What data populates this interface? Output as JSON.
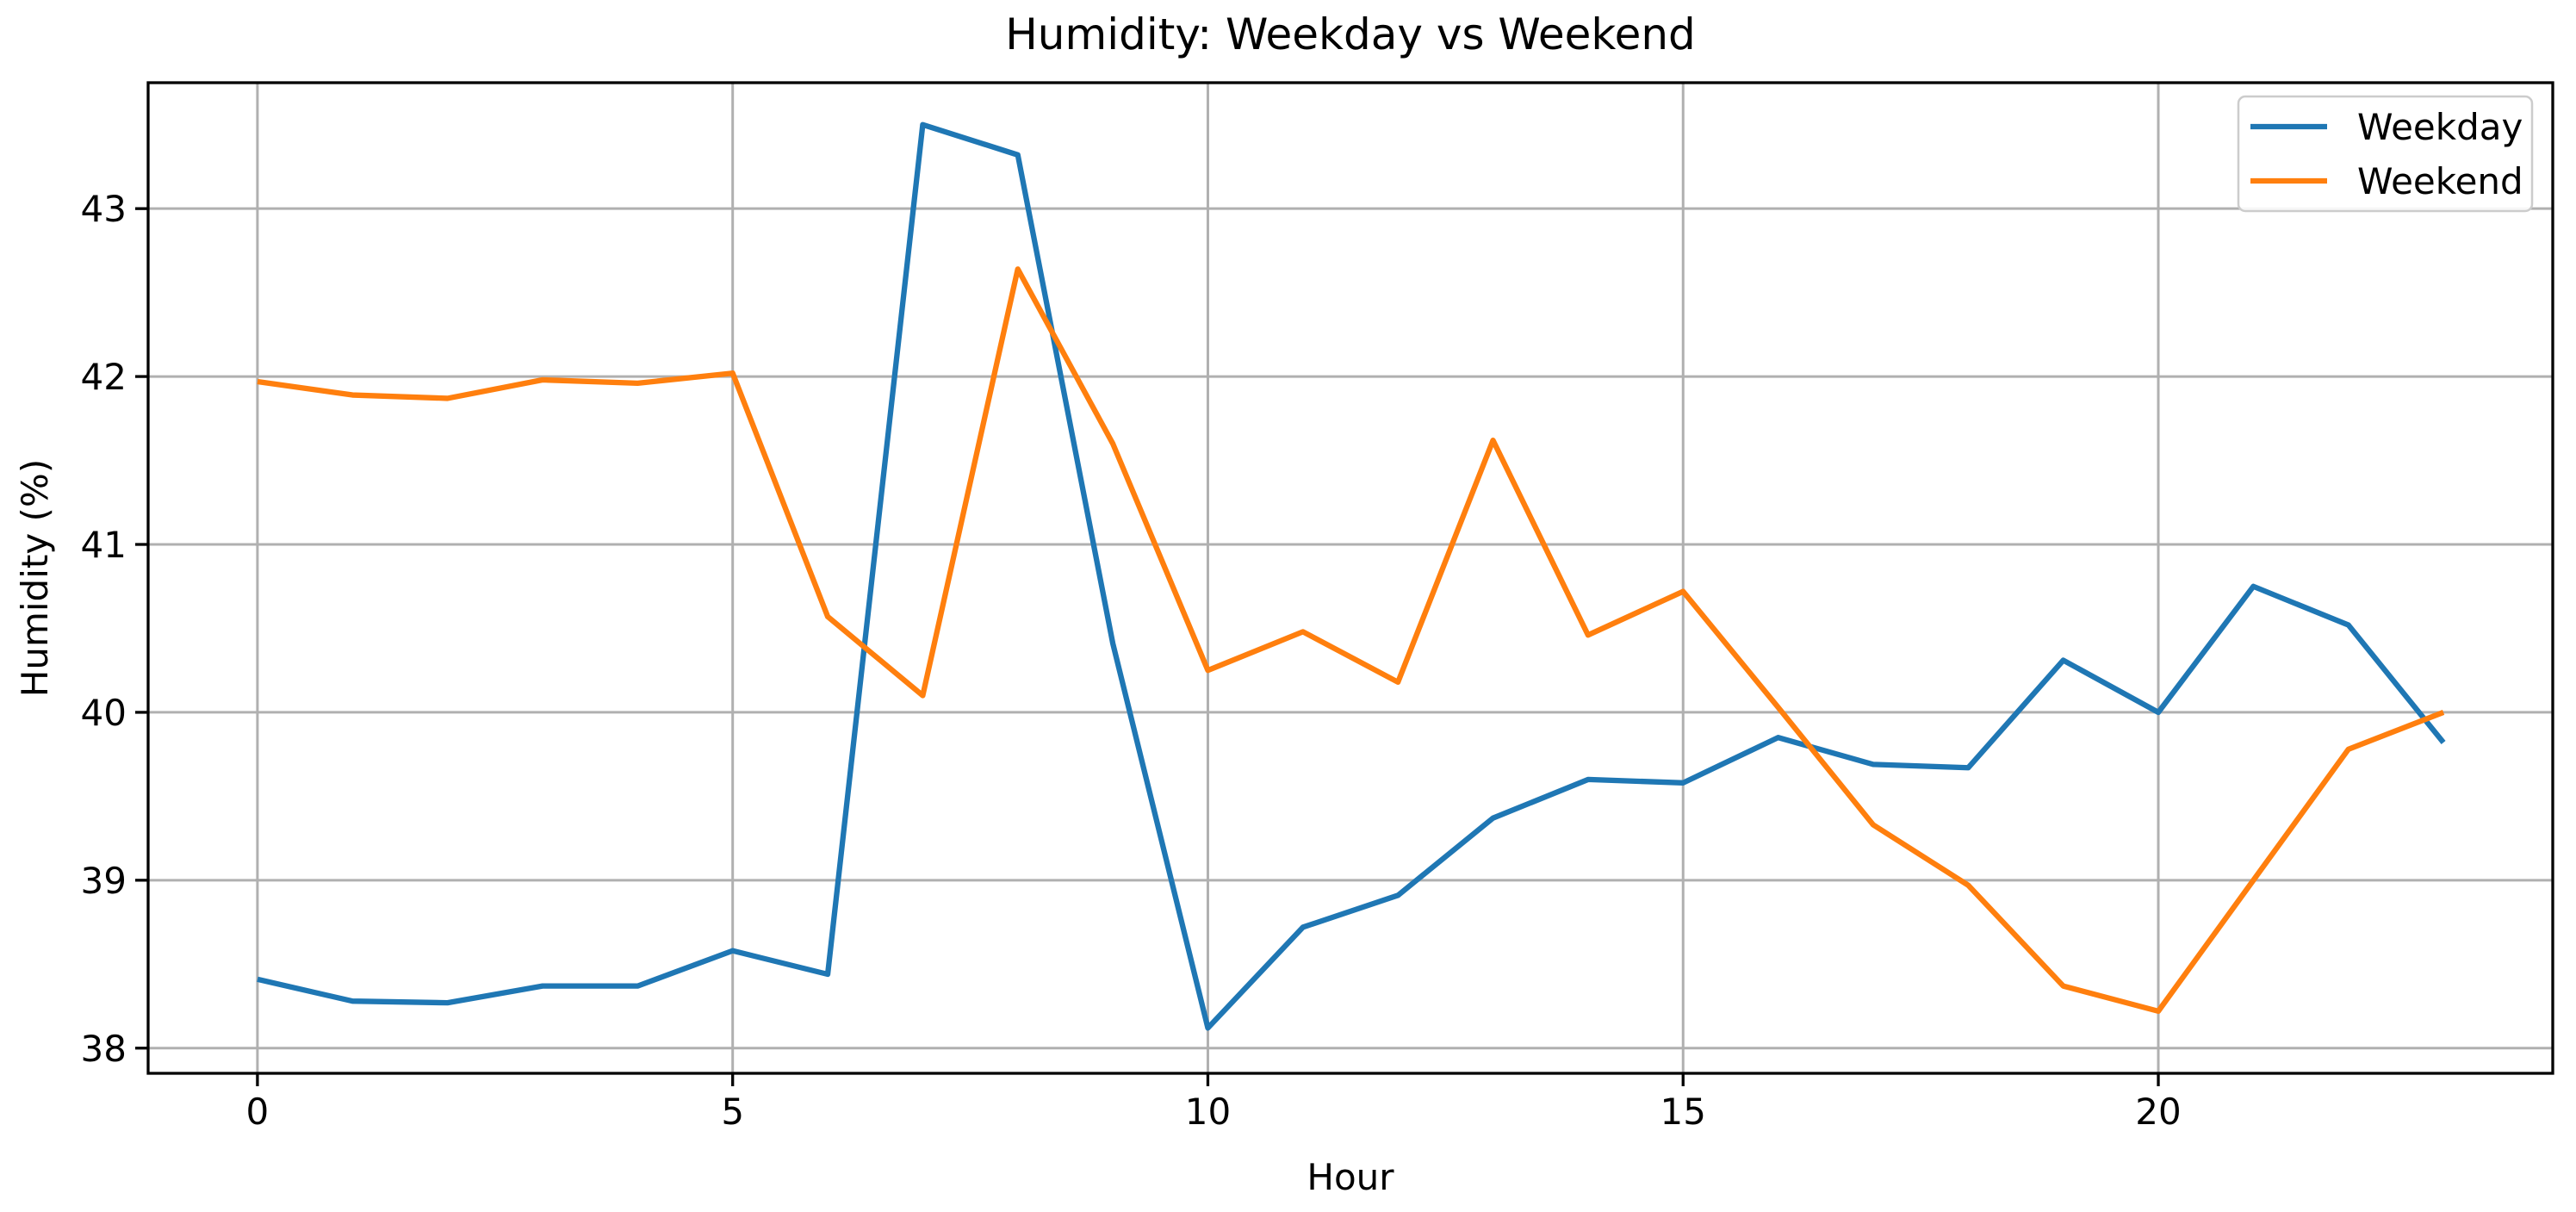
{
  "chart_data": {
    "type": "line",
    "title": "Humidity: Weekday vs Weekend",
    "xlabel": "Hour",
    "ylabel": "Humidity (%)",
    "x": [
      0,
      1,
      2,
      3,
      4,
      5,
      6,
      7,
      8,
      9,
      10,
      11,
      12,
      13,
      14,
      15,
      16,
      17,
      18,
      19,
      20,
      21,
      22,
      23
    ],
    "series": [
      {
        "name": "Weekday",
        "color": "#1f77b4",
        "values": [
          38.41,
          38.28,
          38.27,
          38.37,
          38.37,
          38.58,
          38.44,
          43.5,
          43.32,
          40.41,
          38.12,
          38.72,
          38.91,
          39.37,
          39.6,
          39.58,
          39.85,
          39.69,
          39.67,
          40.31,
          40.0,
          40.75,
          40.52,
          39.82
        ]
      },
      {
        "name": "Weekend",
        "color": "#ff7f0e",
        "values": [
          41.97,
          41.89,
          41.87,
          41.98,
          41.96,
          42.02,
          40.57,
          40.1,
          42.64,
          41.6,
          40.25,
          40.48,
          40.18,
          41.62,
          40.46,
          40.72,
          40.03,
          39.33,
          38.97,
          38.37,
          38.22,
          39.0,
          39.78,
          40.0
        ]
      }
    ],
    "xticks": [
      0,
      5,
      10,
      15,
      20
    ],
    "yticks": [
      38,
      39,
      40,
      41,
      42,
      43
    ],
    "xlim": [
      -1.15,
      24.15
    ],
    "ylim": [
      37.85,
      43.75
    ],
    "grid": true,
    "legend_position": "upper right",
    "colors": {
      "grid": "#b0b0b0",
      "spine": "#000000",
      "text": "#000000",
      "legend_border": "#cccccc",
      "legend_background": "#ffffff",
      "background": "#ffffff"
    }
  }
}
